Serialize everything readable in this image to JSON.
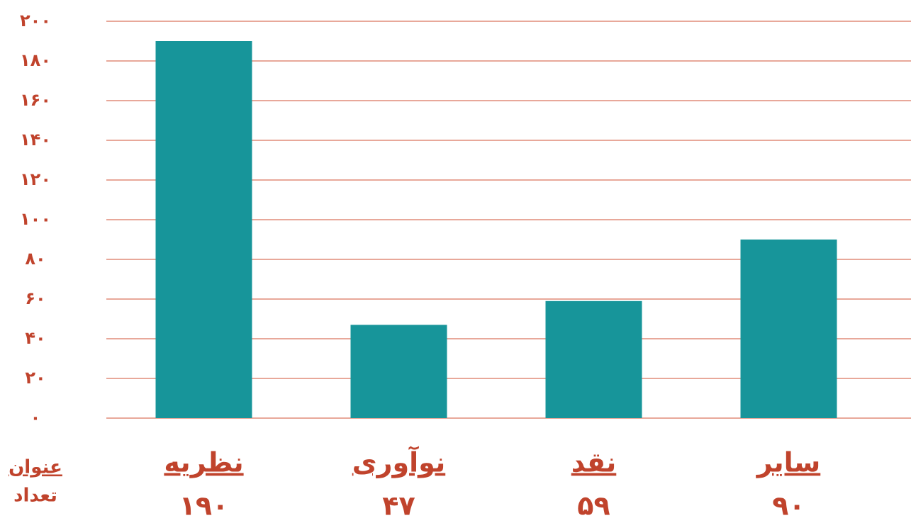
{
  "chart_data": {
    "type": "bar",
    "categories": [
      "نظریه",
      "نوآوری",
      "نقد",
      "سایر"
    ],
    "values": [
      190,
      47,
      59,
      90
    ],
    "value_labels": [
      "۱۹۰",
      "۴۷",
      "۵۹",
      "۹۰"
    ],
    "category_header": "عنوان",
    "value_header": "تعداد",
    "color": "#17959a",
    "ylim": [
      0,
      200
    ],
    "yticks": [
      {
        "value": 0,
        "label": "۰"
      },
      {
        "value": 20,
        "label": "۲۰"
      },
      {
        "value": 40,
        "label": "۴۰"
      },
      {
        "value": 60,
        "label": "۶۰"
      },
      {
        "value": 80,
        "label": "۸۰"
      },
      {
        "value": 100,
        "label": "۱۰۰"
      },
      {
        "value": 120,
        "label": "۱۲۰"
      },
      {
        "value": 140,
        "label": "۱۴۰"
      },
      {
        "value": 160,
        "label": "۱۶۰"
      },
      {
        "value": 180,
        "label": "۱۸۰"
      },
      {
        "value": 200,
        "label": "۲۰۰"
      }
    ],
    "grid": true
  }
}
